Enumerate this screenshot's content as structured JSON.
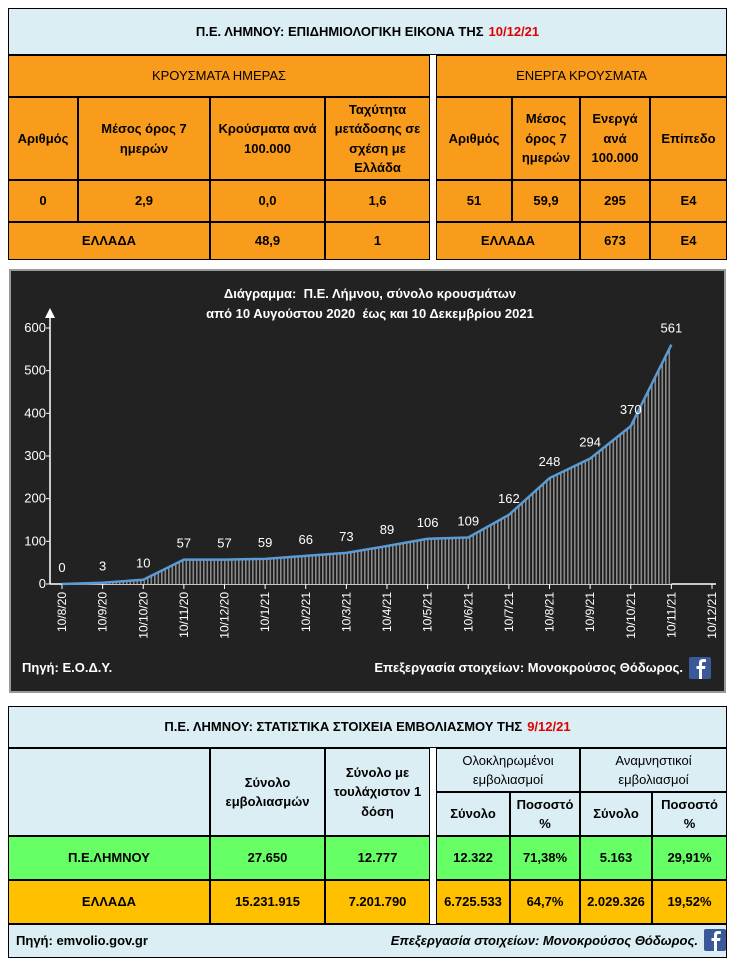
{
  "epidemiology": {
    "title": "Π.Ε. ΛΗΜΝΟΥ: ΕΠΙΔΗΜΙΟΛΟΓΙΚΗ ΕΙΚΟΝΑ ΤΗΣ",
    "date": "10/12/21",
    "daily_cases": {
      "heading": "ΚΡΟΥΣΜΑΤΑ ΗΜΕΡΑΣ",
      "columns": [
        "Αριθμός",
        "Μέσος όρος 7 ημερών",
        "Κρούσματα ανά 100.000",
        "Ταχύτητα μετάδοσης σε σχέση με Ελλάδα"
      ],
      "values": [
        "0",
        "2,9",
        "0,0",
        "1,6"
      ],
      "greece_label": "ΕΛΛΑΔΑ",
      "greece_values": [
        "48,9",
        "1"
      ]
    },
    "active_cases": {
      "heading": "ΕΝΕΡΓΑ ΚΡΟΥΣΜΑΤΑ",
      "columns": [
        "Αριθμός",
        "Μέσος όρος 7 ημερών",
        "Ενεργά ανά 100.000",
        "Επίπεδο"
      ],
      "values": [
        "51",
        "59,9",
        "295",
        "Ε4"
      ],
      "greece_label": "ΕΛΛΑΔΑ",
      "greece_values": [
        "673",
        "Ε4"
      ]
    }
  },
  "chart_data": {
    "type": "line",
    "title": "Διάγραμμα:  Π.Ε. Λήμνου, σύνολο κρουσμάτων",
    "subtitle": "από 10 Αυγούστου 2020  έως και 10 Δεκεμβρίου 2021",
    "categories": [
      "10/8/20",
      "10/9/20",
      "10/10/20",
      "10/11/20",
      "10/12/20",
      "10/1/21",
      "10/2/21",
      "10/3/21",
      "10/4/21",
      "10/5/21",
      "10/6/21",
      "10/7/21",
      "10/8/21",
      "10/9/21",
      "10/10/21",
      "10/11/21",
      "10/12/21"
    ],
    "values": [
      0,
      3,
      10,
      57,
      57,
      59,
      66,
      73,
      89,
      106,
      109,
      162,
      248,
      294,
      370,
      561,
      null
    ],
    "color": "#5b9bd5",
    "ylim": [
      0,
      600
    ],
    "yticks": [
      0,
      100,
      200,
      300,
      400,
      500,
      600
    ],
    "grid": false,
    "source": "Πηγή: Ε.Ο.Δ.Υ.",
    "credit": "Επεξεργασία στοιχείων: Μονοκρούσος Θόδωρος."
  },
  "vaccination": {
    "title": "Π.Ε. ΛΗΜΝΟΥ: ΣΤΑΤΙΣΤΙΚΑ ΣΤΟΙΧΕΙΑ ΕΜΒΟΛΙΑΣΜΟΥ ΤΗΣ",
    "date": "9/12/21",
    "columns": [
      "Σύνολο εμβολιασμών",
      "Σύνολο με τουλάχιστον 1 δόση"
    ],
    "groups": [
      {
        "name": "Ολοκληρωμένοι εμβολιασμοί",
        "columns": [
          "Σύνολο",
          "Ποσοστό %"
        ]
      },
      {
        "name": "Αναμνηστικοί εμβολιασμοί",
        "columns": [
          "Σύνολο",
          "Ποσοστό %"
        ]
      }
    ],
    "rows": [
      {
        "label": "Π.Ε.ΛΗΜΝΟΥ",
        "values": [
          "27.650",
          "12.777",
          "12.322",
          "71,38%",
          "5.163",
          "29,91%"
        ]
      },
      {
        "label": "ΕΛΛΑΔΑ",
        "values": [
          "15.231.915",
          "7.201.790",
          "6.725.533",
          "64,7%",
          "2.029.326",
          "19,52%"
        ]
      }
    ],
    "source": "Πηγή: emvolio.gov.gr",
    "credit": "Επεξεργασία στοιχείων: Μονοκρούσος Θόδωρος."
  }
}
